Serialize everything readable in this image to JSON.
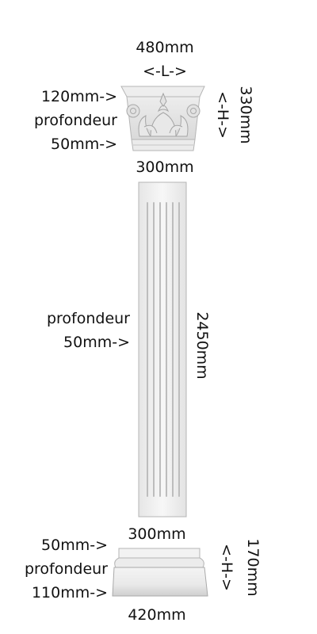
{
  "capital": {
    "width_value": "480mm",
    "width_symbol": "<-L->",
    "top_depth": "120mm->",
    "depth_word": "profondeur",
    "bottom_depth": "50mm->",
    "height_value": "330mm",
    "height_symbol": "<-H->",
    "bottom_width": "300mm"
  },
  "shaft": {
    "depth_word": "profondeur",
    "depth_value": "50mm->",
    "height_value": "2450mm"
  },
  "base": {
    "top_width": "300mm",
    "top_depth": "50mm->",
    "depth_word": "profondeur",
    "bottom_depth": "110mm->",
    "height_value": "170mm",
    "height_symbol": "<-H->",
    "bottom_width": "420mm"
  },
  "colors": {
    "plaster": "#f2f2f2",
    "shadow": "#cfcfcf",
    "outline": "#b5b5b5",
    "text": "#111111"
  }
}
